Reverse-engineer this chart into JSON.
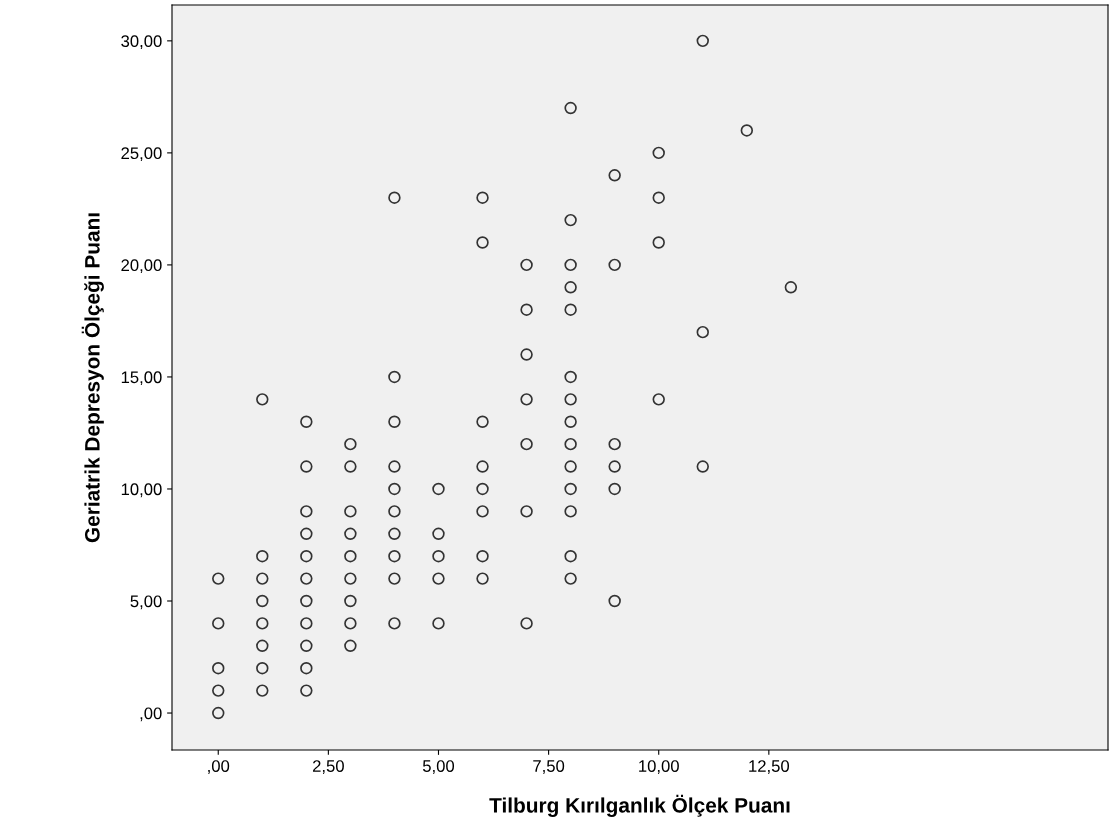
{
  "chart_data": {
    "type": "scatter",
    "xlabel": "Tilburg Kırılganlık Ölçek Puanı",
    "ylabel": "Geriatrik Depresyon Ölçeği Puanı",
    "x": [
      0,
      0,
      0,
      0,
      0,
      1,
      1,
      1,
      1,
      1,
      1,
      1,
      1,
      2,
      2,
      2,
      2,
      2,
      2,
      2,
      2,
      2,
      2,
      2,
      3,
      3,
      3,
      3,
      3,
      3,
      3,
      3,
      3,
      4,
      4,
      4,
      4,
      4,
      4,
      4,
      4,
      4,
      4,
      5,
      5,
      5,
      5,
      5,
      6,
      6,
      6,
      6,
      6,
      6,
      6,
      6,
      7,
      7,
      7,
      7,
      7,
      7,
      7,
      8,
      8,
      8,
      8,
      8,
      8,
      8,
      8,
      8,
      8,
      8,
      8,
      8,
      8,
      9,
      9,
      9,
      9,
      9,
      9,
      10,
      10,
      10,
      10,
      11,
      11,
      11,
      12,
      13
    ],
    "values": [
      6,
      4,
      2,
      1,
      0,
      14,
      7,
      6,
      5,
      4,
      3,
      2,
      1,
      13,
      11,
      9,
      8,
      7,
      6,
      5,
      4,
      3,
      2,
      1,
      12,
      11,
      9,
      8,
      7,
      6,
      5,
      4,
      3,
      23,
      15,
      13,
      11,
      10,
      9,
      8,
      7,
      6,
      4,
      10,
      8,
      7,
      6,
      4,
      23,
      21,
      13,
      11,
      10,
      9,
      7,
      6,
      20,
      18,
      16,
      14,
      12,
      9,
      4,
      27,
      22,
      20,
      19,
      18,
      15,
      14,
      13,
      12,
      11,
      10,
      9,
      7,
      6,
      24,
      20,
      12,
      11,
      10,
      5,
      25,
      23,
      21,
      14,
      30,
      17,
      11,
      26,
      19
    ],
    "color": "#333333",
    "marker": "circle",
    "grid": false,
    "xlim": [
      -1.05,
      20.2
    ],
    "ylim": [
      -1.65,
      31.6
    ],
    "xticks": [
      {
        "value": 0,
        "label": ",00"
      },
      {
        "value": 2.5,
        "label": "2,50"
      },
      {
        "value": 5,
        "label": "5,00"
      },
      {
        "value": 7.5,
        "label": "7,50"
      },
      {
        "value": 10,
        "label": "10,00"
      },
      {
        "value": 12.5,
        "label": "12,50"
      }
    ],
    "yticks": [
      {
        "value": 0,
        "label": ",00"
      },
      {
        "value": 5,
        "label": "5,00"
      },
      {
        "value": 10,
        "label": "10,00"
      },
      {
        "value": 15,
        "label": "15,00"
      },
      {
        "value": 20,
        "label": "20,00"
      },
      {
        "value": 25,
        "label": "25,00"
      },
      {
        "value": 30,
        "label": "30,00"
      }
    ]
  }
}
